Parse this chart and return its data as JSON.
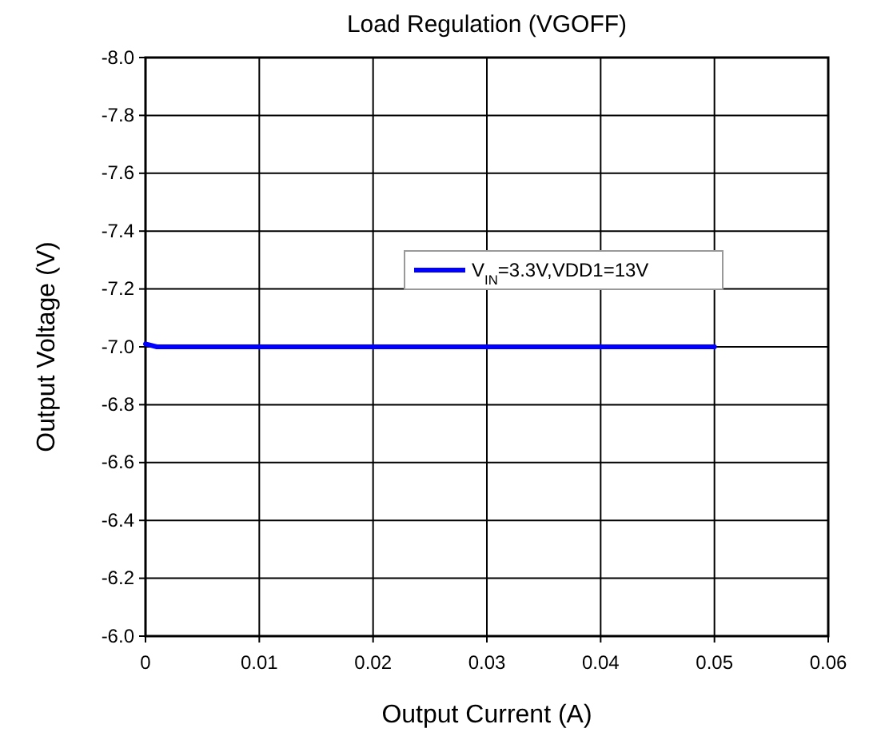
{
  "chart_data": {
    "type": "line",
    "title": "Load Regulation (VGOFF)",
    "xlabel": "Output Current (A)",
    "ylabel": "Output Voltage (V)",
    "xlim": [
      0,
      0.06
    ],
    "xticks": [
      0,
      0.01,
      0.02,
      0.03,
      0.04,
      0.05,
      0.06
    ],
    "ylim": [
      -6.0,
      -8.0
    ],
    "yticks": [
      {
        "value": -8.0,
        "label": "-8.0"
      },
      {
        "value": -7.8,
        "label": "-7.8"
      },
      {
        "value": -7.6,
        "label": "-7.6"
      },
      {
        "value": -7.4,
        "label": "-7.4"
      },
      {
        "value": -7.2,
        "label": "-7.2"
      },
      {
        "value": -7.0,
        "label": "-7.0"
      },
      {
        "value": -6.8,
        "label": "-6.8"
      },
      {
        "value": -6.6,
        "label": "-6.6"
      },
      {
        "value": -6.4,
        "label": "-6.4"
      },
      {
        "value": -6.2,
        "label": "-6.2"
      },
      {
        "value": -6.0,
        "label": "-6.0"
      }
    ],
    "grid": true,
    "legend": "top right",
    "marker": "none",
    "line_style": "solid",
    "series": [
      {
        "name": "V$_{IN}$=3.3V,VDD1=13V",
        "color": "#0000ff",
        "x": [
          0,
          0.001,
          0.01,
          0.02,
          0.03,
          0.04,
          0.05
        ],
        "values": [
          -7.01,
          -7.0,
          -7.0,
          -7.0,
          -7.0,
          -7.0,
          -7.0
        ]
      }
    ]
  }
}
